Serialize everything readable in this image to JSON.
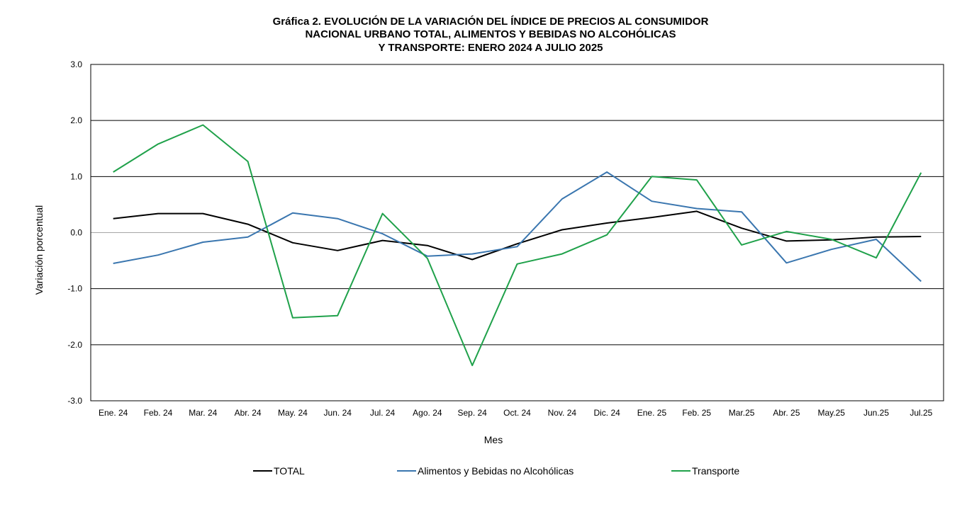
{
  "chart_data": {
    "type": "line",
    "title": [
      "Gráfica 2.  EVOLUCIÓN DE LA VARIACIÓN DEL ÍNDICE DE PRECIOS AL CONSUMIDOR",
      "NACIONAL URBANO TOTAL, ALIMENTOS Y BEBIDAS NO ALCOHÓLICAS",
      "Y TRANSPORTE: ENERO 2024 A JULIO 2025"
    ],
    "xlabel": "Mes",
    "ylabel": "Variación  porcentual",
    "ylim": [
      -3.0,
      3.0
    ],
    "yticks": [
      "3.0",
      "2.0",
      "1.0",
      "0.0",
      "-1.0",
      "-2.0",
      "-3.0"
    ],
    "ytick_values": [
      3,
      2,
      1,
      0,
      -1,
      -2,
      -3
    ],
    "categories": [
      "Ene. 24",
      "Feb. 24",
      "Mar. 24",
      "Abr. 24",
      "May. 24",
      "Jun. 24",
      "Jul. 24",
      "Ago. 24",
      "Sep. 24",
      "Oct. 24",
      "Nov. 24",
      "Dic. 24",
      "Ene. 25",
      "Feb. 25",
      "Mar.25",
      "Abr. 25",
      "May.25",
      "Jun.25",
      "Jul.25"
    ],
    "grid": true,
    "legend_position": "bottom",
    "series": [
      {
        "name": "TOTAL",
        "color": "#000000",
        "values": [
          0.25,
          0.34,
          0.34,
          0.15,
          -0.18,
          -0.32,
          -0.14,
          -0.23,
          -0.48,
          -0.2,
          0.05,
          0.17,
          0.27,
          0.38,
          0.08,
          -0.15,
          -0.13,
          -0.08,
          -0.07
        ]
      },
      {
        "name": "Alimentos y Bebidas no Alcohólicas",
        "color": "#3A76AF",
        "values": [
          -0.55,
          -0.4,
          -0.17,
          -0.08,
          0.35,
          0.25,
          -0.02,
          -0.42,
          -0.38,
          -0.25,
          0.6,
          1.08,
          0.56,
          0.43,
          0.37,
          -0.54,
          -0.3,
          -0.12,
          -0.87
        ]
      },
      {
        "name": "Transporte",
        "color": "#1FA14A",
        "values": [
          1.08,
          1.58,
          1.92,
          1.27,
          -1.52,
          -1.48,
          0.34,
          -0.46,
          -2.37,
          -0.56,
          -0.38,
          -0.04,
          1.0,
          0.94,
          -0.22,
          0.02,
          -0.12,
          -0.45,
          1.07
        ]
      }
    ]
  }
}
